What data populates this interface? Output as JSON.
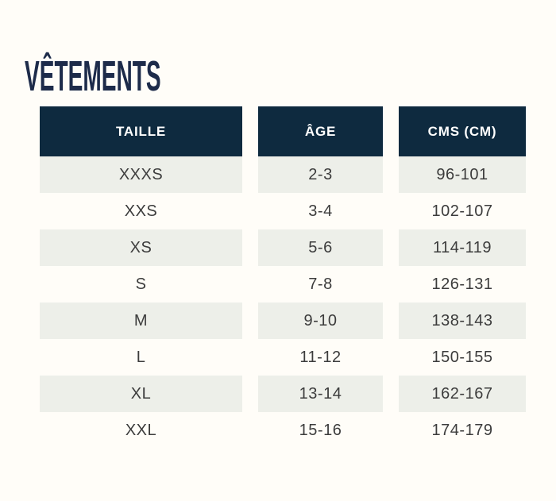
{
  "page": {
    "title": "VÊTEMENTS",
    "background_color": "#fffdf8",
    "title_color": "#1d2b4a"
  },
  "table": {
    "columns": [
      "TAILLE",
      "ÂGE",
      "CMS (CM)"
    ],
    "rows": [
      {
        "taille": "XXXS",
        "age": "2-3",
        "cms": "96-101"
      },
      {
        "taille": "XXS",
        "age": "3-4",
        "cms": "102-107"
      },
      {
        "taille": "XS",
        "age": "5-6",
        "cms": "114-119"
      },
      {
        "taille": "S",
        "age": "7-8",
        "cms": "126-131"
      },
      {
        "taille": "M",
        "age": "9-10",
        "cms": "138-143"
      },
      {
        "taille": "L",
        "age": "11-12",
        "cms": "150-155"
      },
      {
        "taille": "XL",
        "age": "13-14",
        "cms": "162-167"
      },
      {
        "taille": "XXL",
        "age": "15-16",
        "cms": "174-179"
      }
    ],
    "colors": {
      "header_background": "#0e2a3f",
      "header_text": "#ffffff",
      "alt_row_background": "#edefe9",
      "cell_text": "#3c3c3c"
    }
  },
  "chart_data": {
    "type": "table",
    "title": "VÊTEMENTS",
    "columns": [
      "TAILLE",
      "ÂGE",
      "CMS (CM)"
    ],
    "rows": [
      [
        "XXXS",
        "2-3",
        "96-101"
      ],
      [
        "XXS",
        "3-4",
        "102-107"
      ],
      [
        "XS",
        "5-6",
        "114-119"
      ],
      [
        "S",
        "7-8",
        "126-131"
      ],
      [
        "M",
        "9-10",
        "138-143"
      ],
      [
        "L",
        "11-12",
        "150-155"
      ],
      [
        "XL",
        "13-14",
        "162-167"
      ],
      [
        "XXL",
        "15-16",
        "174-179"
      ]
    ]
  }
}
